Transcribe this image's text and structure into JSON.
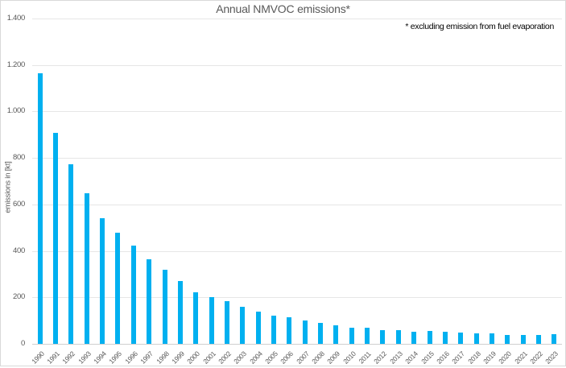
{
  "chart_data": {
    "type": "bar",
    "title": "Annual NMVOC emissions*",
    "annotation": "* excluding emission from fuel evaporation",
    "xlabel": "",
    "ylabel": "emissions in [kt]",
    "ylim": [
      0,
      1400
    ],
    "yticks": [
      "0",
      "200",
      "400",
      "600",
      "800",
      "1.000",
      "1.200",
      "1.400"
    ],
    "grid": true,
    "legend": "none",
    "bar_color": "#00b0f0",
    "categories": [
      "1990",
      "1991",
      "1992",
      "1993",
      "1994",
      "1995",
      "1996",
      "1997",
      "1998",
      "1999",
      "2000",
      "2001",
      "2002",
      "2003",
      "2004",
      "2005",
      "2006",
      "2007",
      "2008",
      "2009",
      "2010",
      "2011",
      "2012",
      "2013",
      "2014",
      "2015",
      "2016",
      "2017",
      "2018",
      "2019",
      "2020",
      "2021",
      "2022",
      "2023"
    ],
    "values": [
      1164,
      907,
      772,
      648,
      539,
      479,
      424,
      364,
      319,
      269,
      222,
      201,
      182,
      160,
      139,
      122,
      113,
      100,
      90,
      81,
      70,
      68,
      60,
      58,
      53,
      55,
      53,
      50,
      46,
      46,
      37,
      37,
      37,
      40
    ]
  }
}
